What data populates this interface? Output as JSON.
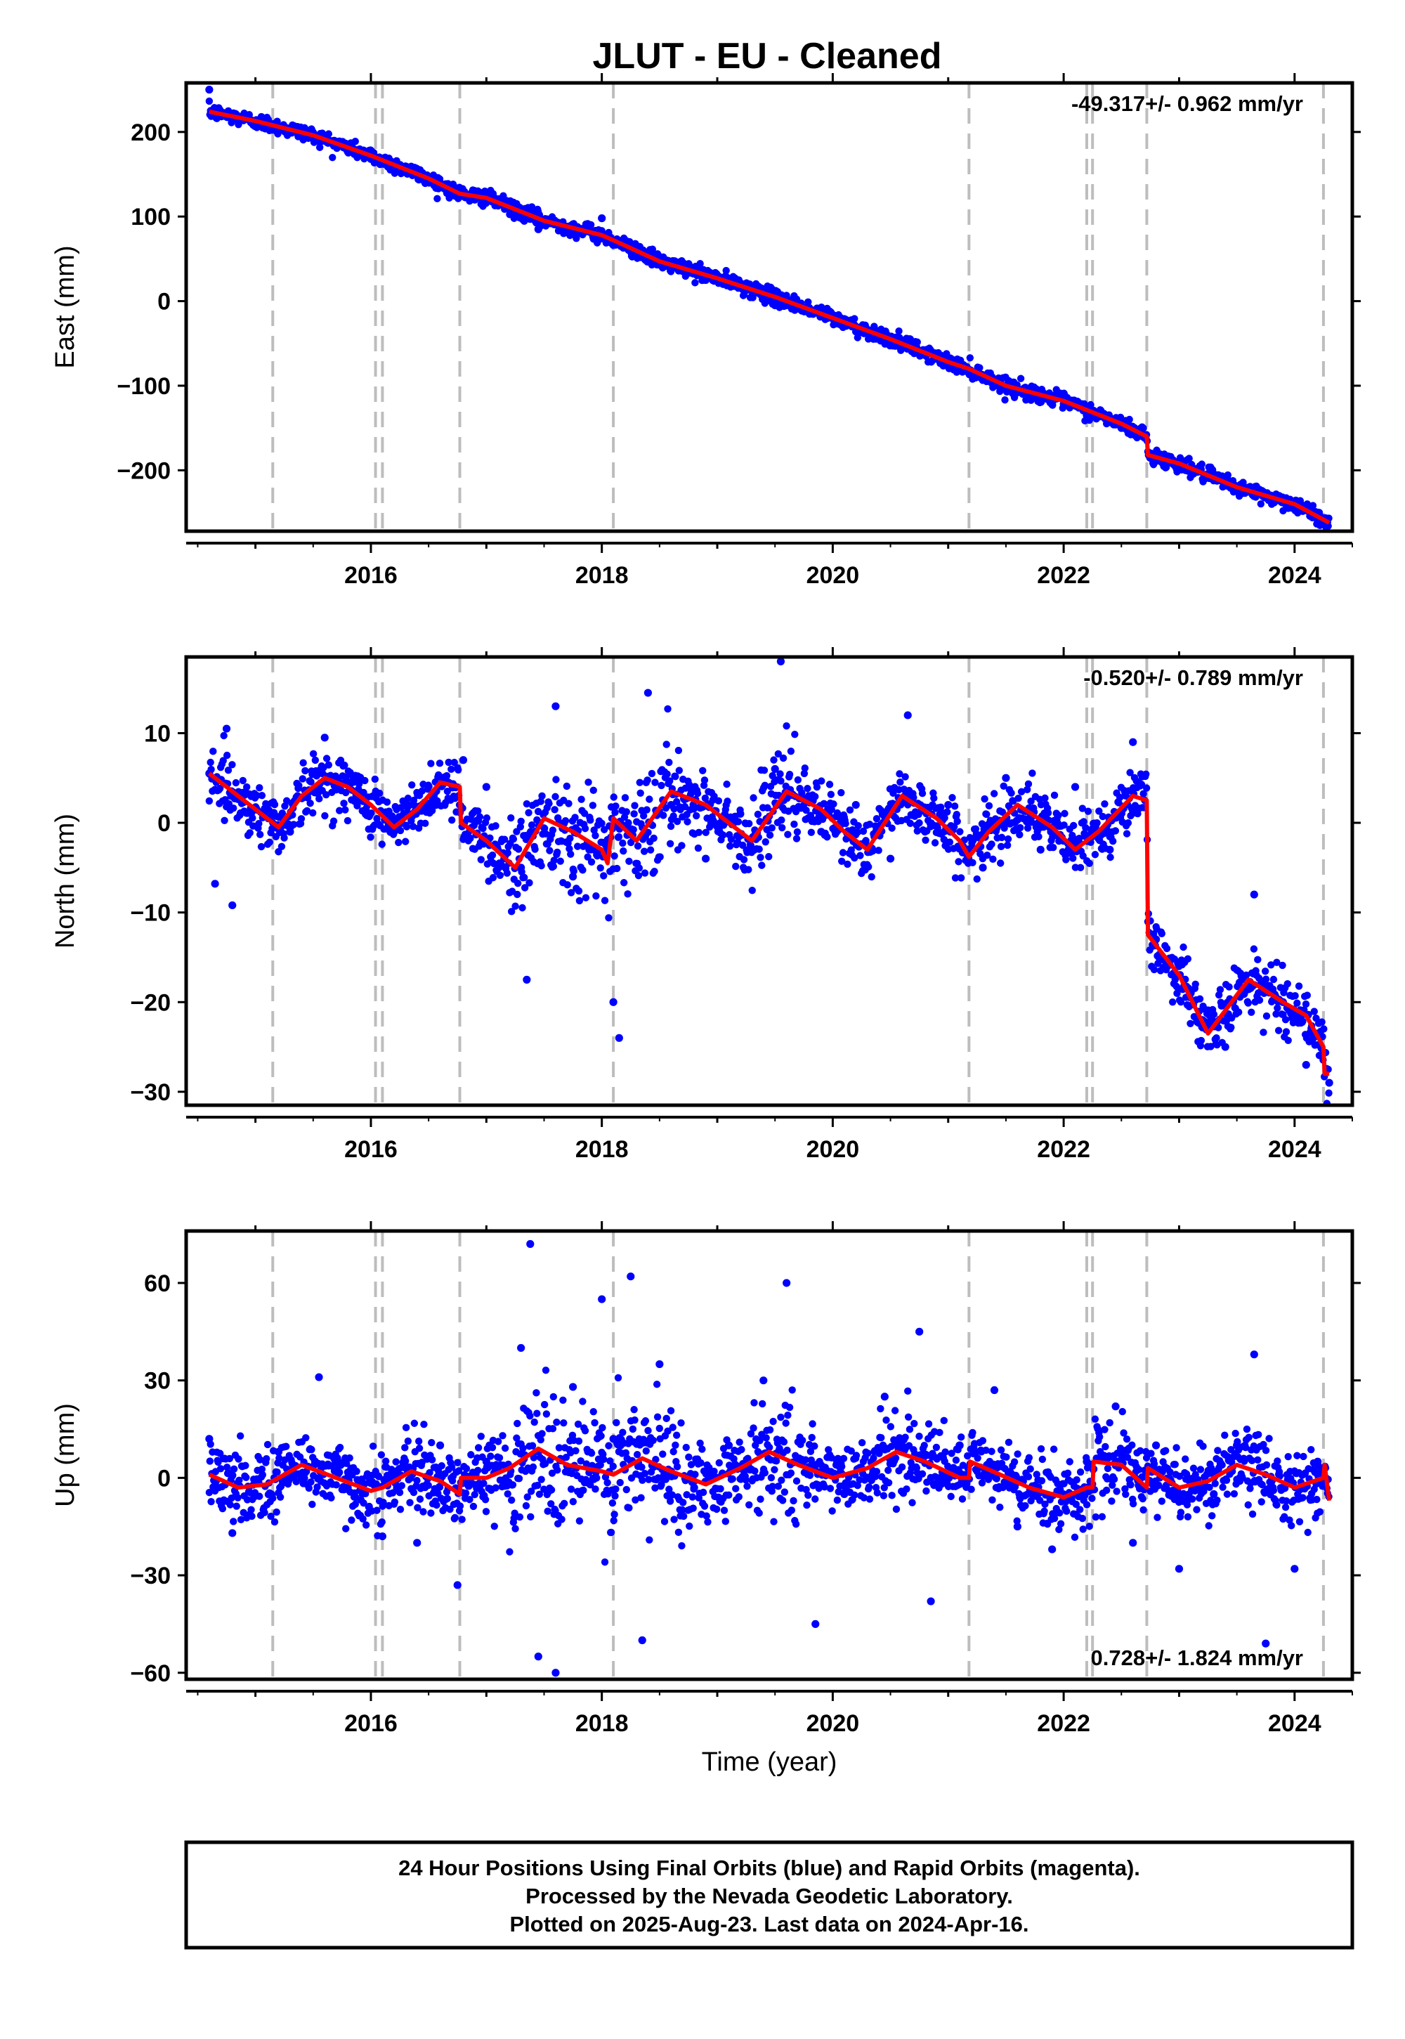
{
  "chart_data": {
    "type": "scatter",
    "title": "JLUT  - EU - Cleaned",
    "xlabel": "Time (year)",
    "xlim": [
      2014.4,
      2024.5
    ],
    "x_ticks": [
      2016,
      2018,
      2020,
      2022,
      2024
    ],
    "x_tick_labels": [
      "2016",
      "2018",
      "2020",
      "2022",
      "2024"
    ],
    "event_lines": [
      2015.15,
      2016.04,
      2016.1,
      2016.77,
      2018.1,
      2021.18,
      2022.2,
      2022.25,
      2022.72,
      2024.25
    ],
    "series_colors": {
      "final_orbits": "#0000ff",
      "model_fit": "#ff0000",
      "event_lines": "#bdbdbd"
    },
    "panels": [
      {
        "id": "east",
        "ylabel": "East (mm)",
        "ylim": [
          -272,
          258
        ],
        "y_ticks": [
          200,
          100,
          0,
          -100,
          -200
        ],
        "y_tick_labels": [
          "200",
          "100",
          "0",
          "−100",
          "−200"
        ],
        "rate": "-49.317+/- 0.962 mm/yr",
        "rate_position": "top-right",
        "fit": {
          "x": [
            2014.6,
            2015.0,
            2015.5,
            2016.0,
            2016.5,
            2016.77,
            2017.0,
            2017.5,
            2018.0,
            2018.1,
            2018.5,
            2019.0,
            2019.5,
            2020.0,
            2020.5,
            2021.0,
            2021.18,
            2021.5,
            2022.0,
            2022.5,
            2022.72,
            2022.73,
            2023.0,
            2023.5,
            2024.0,
            2024.3
          ],
          "y": [
            224,
            213,
            196,
            172,
            145,
            127,
            122,
            95,
            78,
            72,
            47,
            27,
            5,
            -20,
            -45,
            -72,
            -80,
            -100,
            -118,
            -145,
            -160,
            -182,
            -192,
            -220,
            -240,
            -262
          ]
        },
        "scatter": {
          "x": [
            2014.6,
            2014.8,
            2015.0,
            2015.2,
            2015.5,
            2015.8,
            2016.0,
            2016.3,
            2016.6,
            2016.9,
            2017.2,
            2017.45,
            2017.7,
            2018.0,
            2018.3,
            2018.6,
            2018.9,
            2019.2,
            2019.5,
            2019.8,
            2020.1,
            2020.4,
            2020.7,
            2021.0,
            2021.3,
            2021.6,
            2021.9,
            2022.2,
            2022.5,
            2022.75,
            2023.0,
            2023.3,
            2023.6,
            2023.9,
            2024.2
          ],
          "y": [
            250,
            218,
            212,
            205,
            192,
            178,
            168,
            155,
            135,
            120,
            108,
            85,
            88,
            98,
            60,
            40,
            25,
            18,
            -5,
            -15,
            -25,
            -40,
            -55,
            -72,
            -92,
            -108,
            -122,
            -135,
            -150,
            -185,
            -195,
            -212,
            -225,
            -238,
            -255
          ]
        }
      },
      {
        "id": "north",
        "ylabel": "North (mm)",
        "ylim": [
          -31.5,
          18.5
        ],
        "y_ticks": [
          10,
          0,
          -10,
          -20,
          -30
        ],
        "y_tick_labels": [
          "10",
          "0",
          "−10",
          "−20",
          "−30"
        ],
        "rate": "-0.520+/- 0.789 mm/yr",
        "rate_position": "top-right",
        "fit": {
          "x": [
            2014.6,
            2014.8,
            2015.0,
            2015.2,
            2015.4,
            2015.6,
            2015.8,
            2016.0,
            2016.2,
            2016.4,
            2016.6,
            2016.77,
            2016.78,
            2017.0,
            2017.25,
            2017.5,
            2017.75,
            2018.0,
            2018.05,
            2018.1,
            2018.3,
            2018.6,
            2018.9,
            2019.1,
            2019.3,
            2019.6,
            2019.9,
            2020.1,
            2020.3,
            2020.6,
            2020.9,
            2021.1,
            2021.18,
            2021.35,
            2021.6,
            2021.9,
            2022.1,
            2022.3,
            2022.6,
            2022.72,
            2022.73,
            2023.0,
            2023.25,
            2023.6,
            2023.9,
            2024.1,
            2024.25,
            2024.26,
            2024.3
          ],
          "y": [
            5.5,
            3.5,
            1.5,
            -0.5,
            3,
            5,
            4,
            2,
            -0.5,
            1.5,
            4.5,
            4,
            0,
            -2,
            -5,
            0.5,
            -1,
            -3,
            -4.5,
            0.5,
            -2,
            3.5,
            2,
            0,
            -2,
            3.5,
            1.5,
            -1,
            -3,
            3,
            0.5,
            -2,
            -3.8,
            -1,
            2,
            -0.5,
            -3,
            -1,
            3,
            2.5,
            -12.5,
            -17,
            -23.5,
            -17.5,
            -20,
            -21.5,
            -25,
            -28,
            -28
          ]
        },
        "scatter": {
          "x": [
            2014.6,
            2014.65,
            2014.75,
            2014.8,
            2015.1,
            2015.3,
            2015.6,
            2015.9,
            2016.2,
            2016.5,
            2016.8,
            2017.0,
            2017.3,
            2017.35,
            2017.6,
            2017.75,
            2018.1,
            2018.15,
            2018.4,
            2018.6,
            2018.9,
            2019.2,
            2019.5,
            2019.55,
            2019.9,
            2020.2,
            2020.5,
            2020.65,
            2021.0,
            2021.3,
            2021.5,
            2021.8,
            2022.1,
            2022.4,
            2022.6,
            2022.8,
            2023.0,
            2023.2,
            2023.4,
            2023.65,
            2023.9,
            2024.1,
            2024.3
          ],
          "y": [
            5.5,
            -6.8,
            10.5,
            -9.2,
            2,
            -1,
            9.5,
            5,
            -1,
            2,
            7,
            4,
            -5,
            -17.5,
            13,
            -6,
            -20,
            -24,
            14.5,
            2,
            -4,
            1,
            6,
            18,
            -1,
            2,
            -4,
            12,
            2,
            -5,
            5,
            -3,
            4,
            -3,
            9,
            -13,
            -17,
            -22,
            -25,
            -8,
            -20,
            -27,
            -29
          ]
        }
      },
      {
        "id": "up",
        "ylabel": "Up (mm)",
        "ylim": [
          -62,
          76
        ],
        "y_ticks": [
          60,
          30,
          0,
          -30,
          -60
        ],
        "y_tick_labels": [
          "60",
          "30",
          "0",
          "−30",
          "−60"
        ],
        "rate": "0.728+/- 1.824 mm/yr",
        "rate_position": "bottom-right",
        "fit": {
          "x": [
            2014.6,
            2014.85,
            2015.1,
            2015.4,
            2015.7,
            2016.0,
            2016.1,
            2016.35,
            2016.6,
            2016.77,
            2016.78,
            2017.0,
            2017.2,
            2017.45,
            2017.7,
            2018.0,
            2018.1,
            2018.35,
            2018.6,
            2018.9,
            2019.2,
            2019.45,
            2019.7,
            2020.0,
            2020.3,
            2020.55,
            2020.8,
            2021.1,
            2021.18,
            2021.19,
            2021.45,
            2021.7,
            2022.0,
            2022.2,
            2022.25,
            2022.26,
            2022.5,
            2022.72,
            2022.73,
            2023.0,
            2023.25,
            2023.5,
            2023.75,
            2024.0,
            2024.25,
            2024.26,
            2024.3
          ],
          "y": [
            1,
            -3,
            -2,
            4,
            0,
            -4,
            -3,
            2,
            -1,
            -5,
            0,
            0,
            3,
            9,
            4,
            2,
            1,
            6,
            2,
            -2,
            3,
            8,
            4,
            0,
            3,
            8,
            5,
            0,
            0,
            5,
            1,
            -3,
            -6,
            -3,
            -3,
            5,
            4,
            -3,
            3,
            -3,
            -1,
            4,
            1,
            -3,
            0,
            4,
            -7
          ]
        },
        "scatter": {
          "x": [
            2014.6,
            2014.8,
            2015.2,
            2015.55,
            2015.8,
            2016.1,
            2016.4,
            2016.6,
            2016.75,
            2017.0,
            2017.3,
            2017.38,
            2017.45,
            2017.6,
            2017.75,
            2018.0,
            2018.1,
            2018.25,
            2018.35,
            2018.5,
            2018.6,
            2018.8,
            2019.1,
            2019.4,
            2019.6,
            2019.85,
            2020.1,
            2020.45,
            2020.75,
            2020.85,
            2021.1,
            2021.4,
            2021.6,
            2021.9,
            2022.2,
            2022.45,
            2022.6,
            2022.8,
            2023.0,
            2023.3,
            2023.5,
            2023.65,
            2023.75,
            2024.0,
            2024.2
          ],
          "y": [
            12,
            -17,
            8,
            31,
            -3,
            -18,
            -20,
            10,
            -33,
            5,
            40,
            72,
            -55,
            -60,
            28,
            55,
            12,
            62,
            -50,
            35,
            2,
            -3,
            10,
            30,
            60,
            -45,
            -5,
            25,
            45,
            -38,
            10,
            27,
            -15,
            -22,
            5,
            22,
            -20,
            10,
            -28,
            -5,
            10,
            38,
            -51,
            -28,
            5
          ]
        }
      }
    ]
  },
  "footer": {
    "line1": "24 Hour Positions Using Final Orbits (blue) and Rapid Orbits (magenta).",
    "line2": "Processed by the Nevada Geodetic Laboratory.",
    "line3": "Plotted on 2025-Aug-23. Last data on 2024-Apr-16."
  }
}
